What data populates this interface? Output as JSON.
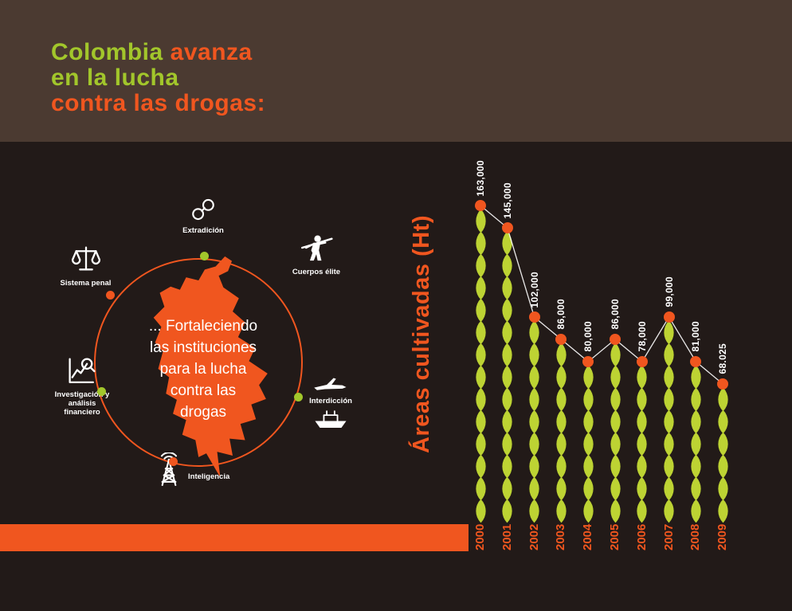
{
  "header": {
    "line1_green": "Colombia",
    "line1_orange": "avanza",
    "line2_green": "en la lucha",
    "line3_orange": "contra las drogas:"
  },
  "diagram": {
    "center_lines": [
      "... Fortaleciendo",
      "las instituciones",
      "para la lucha",
      "contra las",
      "drogas"
    ],
    "nodes": {
      "extradicion": "Extradición",
      "sistema_penal": "Sistema penal",
      "cuerpos_elite": "Cuerpos élite",
      "investigacion": "Investigación y análisis financiero",
      "interdiccion": "Interdicción",
      "inteligencia": "Inteligencia"
    }
  },
  "chart_data": {
    "type": "bar",
    "ylabel": "Áreas cultivadas (Ht)",
    "xlabel": "",
    "categories": [
      "2000",
      "2001",
      "2002",
      "2003",
      "2004",
      "2005",
      "2006",
      "2007",
      "2008",
      "2009"
    ],
    "values": [
      163000,
      145000,
      102000,
      86000,
      80000,
      86000,
      78000,
      99000,
      81000,
      68025
    ],
    "value_labels": [
      "163,000",
      "145,000",
      "102,000",
      "86,000",
      "80,000",
      "86,000",
      "78,000",
      "99,000",
      "81,000",
      "68.025"
    ],
    "ylim": [
      0,
      163000
    ],
    "grid": false,
    "legend": "none"
  },
  "colors": {
    "orange": "#f0561f",
    "green": "#a2c62b",
    "leaf_green": "#bdd333",
    "brown": "#4b3a31",
    "background_dark": "#221a18",
    "white": "#ffffff"
  }
}
